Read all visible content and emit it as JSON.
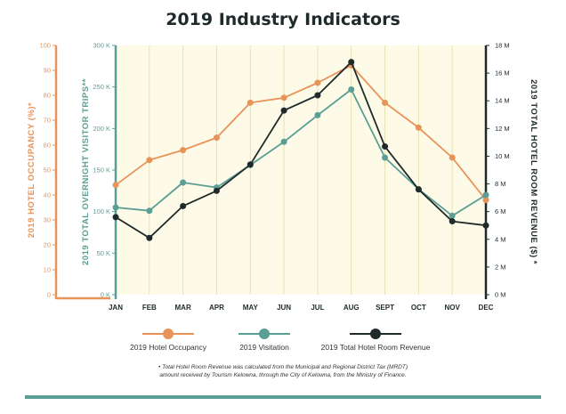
{
  "chart_data": {
    "type": "line",
    "title": "2019 Industry Indicators",
    "categories": [
      "JAN",
      "FEB",
      "MAR",
      "APR",
      "MAY",
      "JUN",
      "JUL",
      "AUG",
      "SEPT",
      "OCT",
      "NOV",
      "DEC"
    ],
    "axes": {
      "occupancy": {
        "label": "2019 HOTEL OCCUPANCY (%)*",
        "range": [
          0,
          100
        ],
        "ticks": [
          0,
          10,
          20,
          30,
          40,
          50,
          60,
          70,
          80,
          90,
          100
        ],
        "tick_labels": [
          "0",
          "10",
          "20",
          "30",
          "40",
          "50",
          "60",
          "70",
          "80",
          "90",
          "100"
        ],
        "color": "#e8935a",
        "position": "left-outer"
      },
      "visitation": {
        "label": "2019 TOTAL OVERNIGHT VISITOR TRIPS**",
        "range": [
          0,
          300000
        ],
        "ticks": [
          0,
          50000,
          100000,
          150000,
          200000,
          250000,
          300000
        ],
        "tick_labels": [
          "0 K",
          "50 K",
          "100 K",
          "150 K",
          "200 K",
          "250 K",
          "300 K"
        ],
        "color": "#5a9e95",
        "position": "left-inner"
      },
      "revenue": {
        "label": "2019 TOTAL HOTEL ROOM REVENUE ($) *",
        "range": [
          0,
          18000000
        ],
        "ticks": [
          0,
          2000000,
          4000000,
          6000000,
          8000000,
          10000000,
          12000000,
          14000000,
          16000000,
          18000000
        ],
        "tick_labels": [
          "0 M",
          "2 M",
          "4 M",
          "6 M",
          "8 M",
          "10 M",
          "12 M",
          "14 M",
          "16 M",
          "18 M"
        ],
        "color": "#1f2a2a",
        "position": "right"
      }
    },
    "series": [
      {
        "name": "2019 Hotel Occupancy",
        "axis": "occupancy",
        "color": "#e8935a",
        "values": [
          44,
          54,
          58,
          63,
          77,
          79,
          85,
          92,
          77,
          67,
          55,
          38
        ]
      },
      {
        "name": "2019 Visitation",
        "axis": "visitation",
        "color": "#5a9e95",
        "values": [
          105000,
          101000,
          135000,
          129000,
          156000,
          184000,
          216000,
          247000,
          165000,
          127000,
          95000,
          120000
        ]
      },
      {
        "name": "2019 Total Hotel Room Revenue",
        "axis": "revenue",
        "color": "#1f2a2a",
        "values": [
          5600000,
          4100000,
          6400000,
          7500000,
          9400000,
          13300000,
          14400000,
          16800000,
          10700000,
          7600000,
          5300000,
          5000000
        ]
      }
    ],
    "grid": "vertical",
    "legend": "bottom",
    "footnote": "Total Hotel Room Revenue was calculated from the Municipal and Regional District Tax (MRDT) amount received by Tourism Kelowna, through the City of Kelowna, from the Ministry of Finance.",
    "footnote_marker": "•"
  }
}
